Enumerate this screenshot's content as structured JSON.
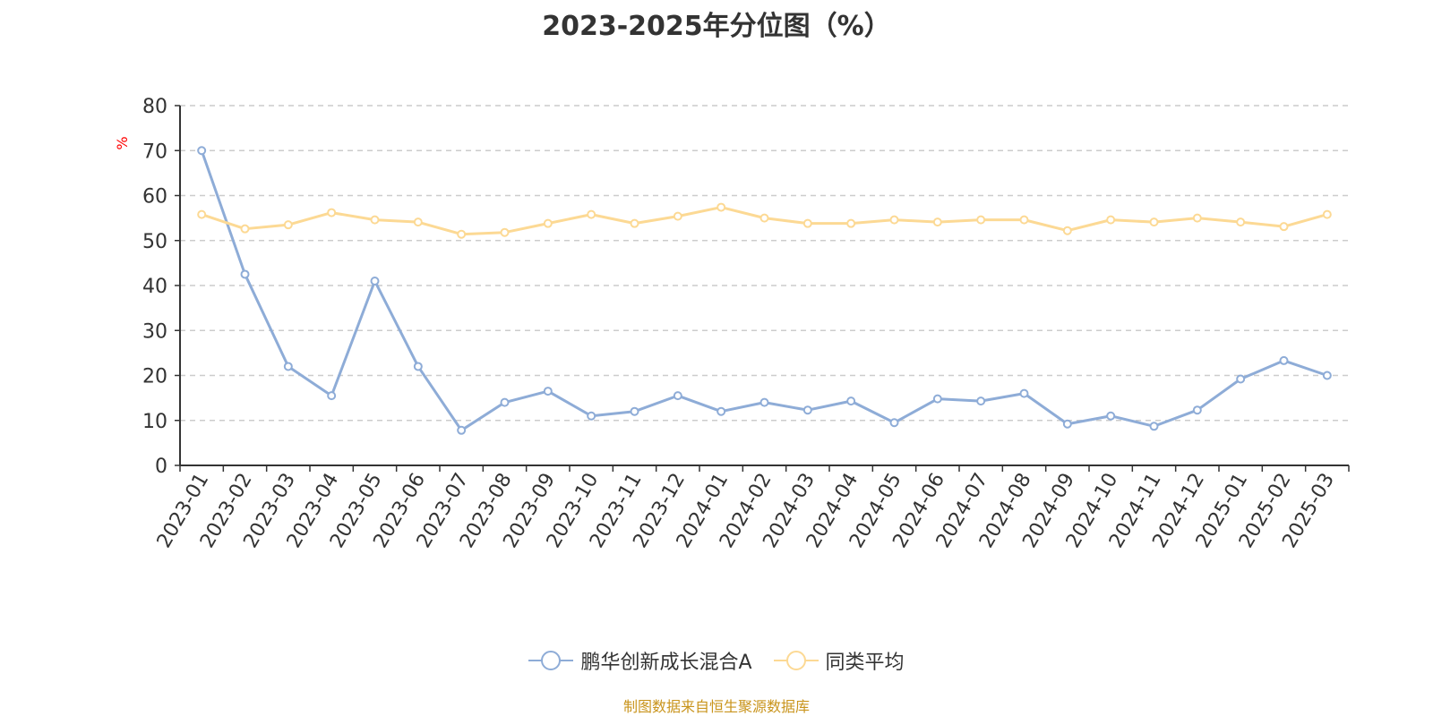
{
  "chart_data": {
    "type": "line",
    "title": "2023-2025年分位图（%）",
    "ylabel": "%",
    "xlabel": "",
    "ylim": [
      0,
      80
    ],
    "yticks": [
      0,
      10,
      20,
      30,
      40,
      50,
      60,
      70,
      80
    ],
    "grid": true,
    "legend_position": "bottom",
    "categories": [
      "2023-01",
      "2023-02",
      "2023-03",
      "2023-04",
      "2023-05",
      "2023-06",
      "2023-07",
      "2023-08",
      "2023-09",
      "2023-10",
      "2023-11",
      "2023-12",
      "2024-01",
      "2024-02",
      "2024-03",
      "2024-04",
      "2024-05",
      "2024-06",
      "2024-07",
      "2024-08",
      "2024-09",
      "2024-10",
      "2024-11",
      "2024-12",
      "2025-01",
      "2025-02",
      "2025-03"
    ],
    "series": [
      {
        "name": "鹏华创新成长混合A",
        "color": "#8eacd7",
        "values": [
          70,
          42.5,
          22,
          15.5,
          41,
          22,
          7.8,
          14,
          16.5,
          11,
          12,
          15.5,
          12,
          14,
          12.3,
          14.3,
          9.5,
          14.8,
          14.3,
          16,
          9.2,
          11,
          8.7,
          12.3,
          19.2,
          23.3,
          20
        ]
      },
      {
        "name": "同类平均",
        "color": "#fcd994",
        "values": [
          55.8,
          52.6,
          53.5,
          56.2,
          54.6,
          54.1,
          51.4,
          51.8,
          53.8,
          55.8,
          53.8,
          55.4,
          57.4,
          55,
          53.8,
          53.8,
          54.6,
          54.1,
          54.6,
          54.6,
          52.2,
          54.6,
          54.1,
          55,
          54.1,
          53.1,
          55.8
        ]
      }
    ]
  },
  "source_note": "制图数据来自恒生聚源数据库"
}
